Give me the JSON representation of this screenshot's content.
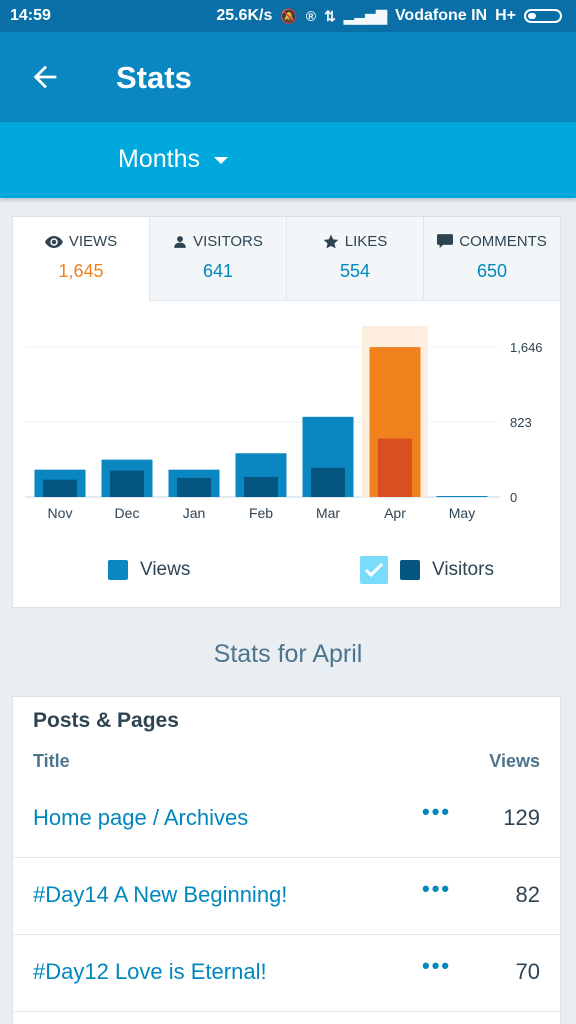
{
  "status": {
    "time": "14:59",
    "speed": "25.6K/s",
    "carrier": "Vodafone IN",
    "network": "H+"
  },
  "appbar": {
    "title": "Stats",
    "back_icon": "arrow-left-icon"
  },
  "period": {
    "label": "Months"
  },
  "tabs": [
    {
      "label": "VIEWS",
      "value": "1,645",
      "icon": "eye-icon"
    },
    {
      "label": "VISITORS",
      "value": "641",
      "icon": "person-icon"
    },
    {
      "label": "LIKES",
      "value": "554",
      "icon": "star-icon"
    },
    {
      "label": "COMMENTS",
      "value": "650",
      "icon": "comment-icon"
    }
  ],
  "chart_data": {
    "type": "bar",
    "categories": [
      "Nov",
      "Dec",
      "Jan",
      "Feb",
      "Mar",
      "Apr",
      "May"
    ],
    "series": [
      {
        "name": "Views",
        "values": [
          300,
          410,
          300,
          480,
          880,
          1645,
          10
        ]
      },
      {
        "name": "Visitors",
        "values": [
          190,
          290,
          210,
          220,
          320,
          641,
          0
        ]
      }
    ],
    "y_ticks": [
      "1,646",
      "823",
      "0"
    ],
    "ylim": [
      0,
      1646
    ],
    "highlight": "Apr",
    "colors": {
      "views": "#0a87c1",
      "visitors": "#045580",
      "views_hl": "#f0821e",
      "visitors_hl": "#d94f20"
    }
  },
  "legend": {
    "views": "Views",
    "visitors": "Visitors"
  },
  "section_title": "Stats for April",
  "posts": {
    "title": "Posts & Pages",
    "col_title": "Title",
    "col_views": "Views",
    "rows": [
      {
        "title": "Home page / Archives",
        "views": "129"
      },
      {
        "title": "#Day14  A New Beginning!",
        "views": "82"
      },
      {
        "title": "#Day12 Love is Eternal!",
        "views": "70"
      }
    ]
  }
}
